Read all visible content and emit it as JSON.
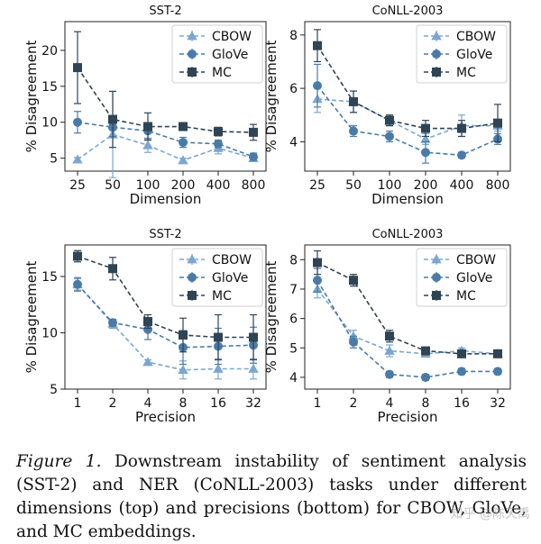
{
  "colors": {
    "CBOW": "#7ba7cf",
    "GloVe": "#4a7aa8",
    "MC": "#2f4454"
  },
  "chart_data": [
    {
      "type": "line",
      "title": "SST-2",
      "xlabel": "Dimension",
      "ylabel": "% Disagreement",
      "categories": [
        "25",
        "50",
        "100",
        "200",
        "400",
        "800"
      ],
      "ylim": [
        3.2,
        24
      ],
      "yticks": [
        5,
        10,
        15,
        20
      ],
      "legend_position": "top-right",
      "series": [
        {
          "name": "CBOW",
          "marker": "triangle",
          "values": [
            4.8,
            8.3,
            6.8,
            4.7,
            6.4,
            5.0
          ],
          "err": [
            0.3,
            6.0,
            1.0,
            0.3,
            0.8,
            0.4
          ]
        },
        {
          "name": "GloVe",
          "marker": "circle",
          "values": [
            10.0,
            9.3,
            8.8,
            7.2,
            7.0,
            5.2
          ],
          "err": [
            1.5,
            1.3,
            1.1,
            0.7,
            0.5,
            0.5
          ]
        },
        {
          "name": "MC",
          "marker": "square",
          "values": [
            17.6,
            10.4,
            9.4,
            9.4,
            8.7,
            8.6
          ],
          "err": [
            5.0,
            3.9,
            1.9,
            0.4,
            0.6,
            1.1
          ]
        }
      ]
    },
    {
      "type": "line",
      "title": "CoNLL-2003",
      "xlabel": "Dimension",
      "ylabel": "% Disagreement",
      "categories": [
        "25",
        "50",
        "100",
        "200",
        "400",
        "800"
      ],
      "ylim": [
        2.9,
        8.5
      ],
      "yticks": [
        4,
        6,
        8
      ],
      "legend_position": "top-right",
      "series": [
        {
          "name": "CBOW",
          "marker": "triangle",
          "values": [
            5.6,
            5.5,
            4.8,
            4.1,
            4.6,
            4.6
          ],
          "err": [
            0.5,
            0.4,
            0.2,
            0.2,
            0.4,
            0.2
          ]
        },
        {
          "name": "GloVe",
          "marker": "circle",
          "values": [
            6.1,
            4.4,
            4.2,
            3.6,
            3.5,
            4.1
          ],
          "err": [
            0.8,
            0.2,
            0.2,
            0.4,
            0.1,
            0.2
          ]
        },
        {
          "name": "MC",
          "marker": "square",
          "values": [
            7.6,
            5.5,
            4.8,
            4.5,
            4.5,
            4.7
          ],
          "err": [
            0.6,
            0.4,
            0.2,
            0.3,
            0.3,
            0.7
          ]
        }
      ]
    },
    {
      "type": "line",
      "title": "SST-2",
      "xlabel": "Precision",
      "ylabel": "% Disagreement",
      "categories": [
        "1",
        "2",
        "4",
        "8",
        "16",
        "32"
      ],
      "ylim": [
        5,
        17.8
      ],
      "yticks": [
        5,
        10,
        15
      ],
      "legend_position": "top-right",
      "series": [
        {
          "name": "CBOW",
          "marker": "triangle",
          "values": [
            14.3,
            10.8,
            7.4,
            6.7,
            6.8,
            6.8
          ],
          "err": [
            0.5,
            0.4,
            0.2,
            0.8,
            0.9,
            0.9
          ]
        },
        {
          "name": "GloVe",
          "marker": "circle",
          "values": [
            14.3,
            10.9,
            10.3,
            8.7,
            8.8,
            8.9
          ],
          "err": [
            0.6,
            0.3,
            0.9,
            1.5,
            1.6,
            1.6
          ]
        },
        {
          "name": "MC",
          "marker": "square",
          "values": [
            16.8,
            15.7,
            11.0,
            9.8,
            9.6,
            9.6
          ],
          "err": [
            0.5,
            1.0,
            0.6,
            1.5,
            2.0,
            2.0
          ]
        }
      ]
    },
    {
      "type": "line",
      "title": "CoNLL-2003",
      "xlabel": "Precision",
      "ylabel": "% Disagreement",
      "categories": [
        "1",
        "2",
        "4",
        "8",
        "16",
        "32"
      ],
      "ylim": [
        3.6,
        8.5
      ],
      "yticks": [
        4,
        5,
        6,
        7,
        8
      ],
      "legend_position": "top-right",
      "series": [
        {
          "name": "CBOW",
          "marker": "triangle",
          "values": [
            7.0,
            5.4,
            4.9,
            4.8,
            4.9,
            4.8
          ],
          "err": [
            0.3,
            0.2,
            0.2,
            0.1,
            0.1,
            0.1
          ]
        },
        {
          "name": "GloVe",
          "marker": "circle",
          "values": [
            7.3,
            5.2,
            4.1,
            4.0,
            4.2,
            4.2
          ],
          "err": [
            0.4,
            0.2,
            0.1,
            0.1,
            0.1,
            0.1
          ]
        },
        {
          "name": "MC",
          "marker": "square",
          "values": [
            7.9,
            7.3,
            5.4,
            4.9,
            4.8,
            4.8
          ],
          "err": [
            0.4,
            0.2,
            0.2,
            0.1,
            0.1,
            0.1
          ]
        }
      ]
    }
  ],
  "caption": {
    "label": "Figure 1.",
    "text": "Downstream instability of sentiment analysis (SST-2) and NER (CoNLL-2003) tasks under different dimensions (top) and precisions (bottom) for CBOW, GloVe, and MC embeddings."
  },
  "watermark": "知乎 @陈天禹"
}
